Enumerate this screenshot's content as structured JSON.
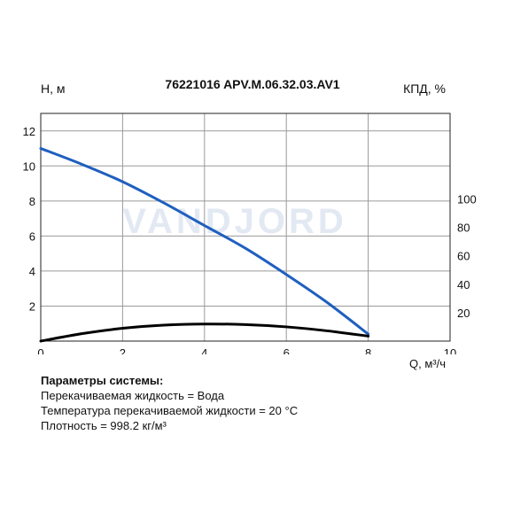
{
  "chart_data": {
    "type": "line",
    "title": "76221016 APV.M.06.32.03.AV1",
    "xlabel": "Q, м³/ч",
    "ylabel_left": "H, м",
    "ylabel_right": "КПД, %",
    "xlim": [
      0,
      10
    ],
    "xticks": [
      0,
      2,
      4,
      6,
      8,
      10
    ],
    "ylim_left": [
      0,
      13
    ],
    "yticks_left": [
      2,
      4,
      6,
      8,
      10,
      12
    ],
    "ylim_right": [
      0,
      160
    ],
    "yticks_right": [
      20,
      40,
      60,
      80,
      100
    ],
    "grid": true,
    "watermark": "VANDJORD",
    "series": [
      {
        "axis": "left",
        "color": "#1f5fbf",
        "x": [
          0,
          1,
          2,
          3,
          4,
          5,
          6,
          7,
          8
        ],
        "y": [
          11.0,
          10.1,
          9.1,
          7.9,
          6.6,
          5.3,
          3.8,
          2.2,
          0.4
        ]
      },
      {
        "axis": "right",
        "color": "#000000",
        "x": [
          0,
          1,
          2,
          3,
          4,
          5,
          6,
          7,
          8
        ],
        "y": [
          0,
          5.2,
          9.0,
          11.2,
          12.0,
          11.6,
          10.0,
          7.2,
          3.5
        ]
      }
    ]
  },
  "params": {
    "title": "Параметры системы:",
    "lines": [
      "Перекачиваемая жидкость = Вода",
      "Температура перекачиваемой жидкости = 20 °C",
      "Плотность = 998.2 кг/м³"
    ]
  }
}
